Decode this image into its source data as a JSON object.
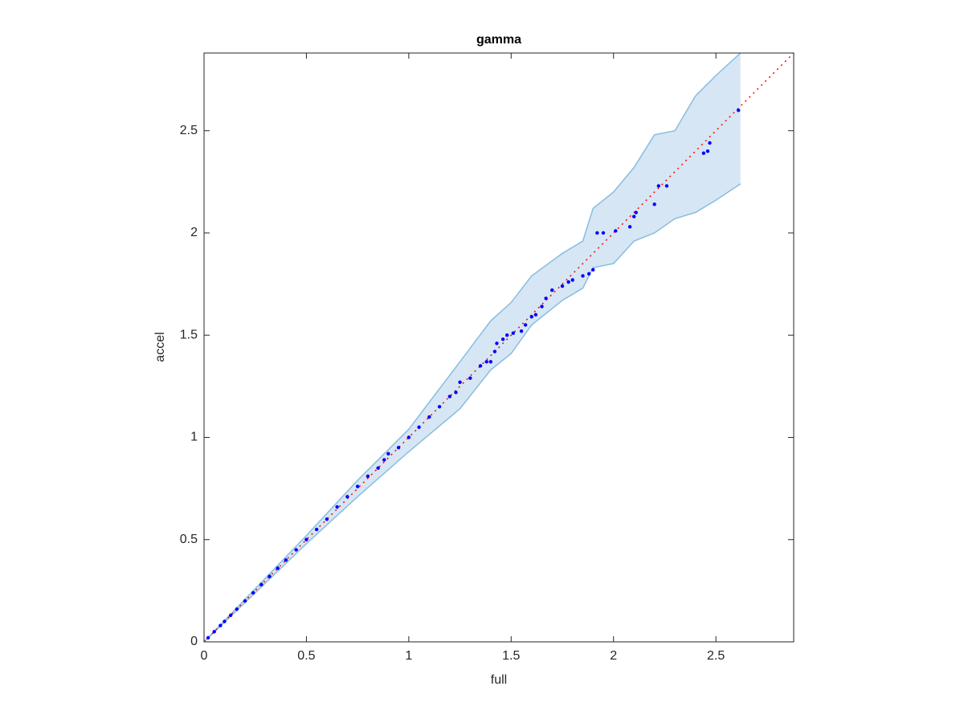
{
  "chart_data": {
    "type": "scatter",
    "title": "gamma",
    "x_label": "full",
    "y_label": "accel",
    "xlim": [
      0,
      2.88
    ],
    "ylim": [
      0,
      2.88
    ],
    "xticks": [
      0,
      0.5,
      1,
      1.5,
      2,
      2.5
    ],
    "yticks": [
      0,
      0.5,
      1,
      1.5,
      2,
      2.5
    ],
    "band": {
      "color": "#d6e6f4",
      "edge_color": "#88bde0",
      "x": [
        0,
        0.25,
        0.5,
        0.75,
        1.0,
        1.25,
        1.4,
        1.5,
        1.6,
        1.75,
        1.85,
        1.9,
        2.0,
        2.1,
        2.2,
        2.3,
        2.4,
        2.5,
        2.62
      ],
      "upper": [
        0,
        0.26,
        0.52,
        0.79,
        1.04,
        1.37,
        1.57,
        1.66,
        1.79,
        1.9,
        1.96,
        2.12,
        2.2,
        2.32,
        2.48,
        2.5,
        2.67,
        2.77,
        2.88
      ],
      "lower": [
        0,
        0.24,
        0.48,
        0.71,
        0.93,
        1.14,
        1.33,
        1.41,
        1.55,
        1.67,
        1.73,
        1.83,
        1.85,
        1.96,
        2.0,
        2.07,
        2.1,
        2.16,
        2.24
      ]
    },
    "reference_line": {
      "color": "#ff0000",
      "x": [
        0,
        2.88
      ],
      "y": [
        0,
        2.88
      ]
    },
    "points": {
      "color": "#0000ff",
      "x": [
        0.02,
        0.05,
        0.08,
        0.1,
        0.13,
        0.16,
        0.2,
        0.24,
        0.28,
        0.32,
        0.36,
        0.4,
        0.45,
        0.5,
        0.55,
        0.6,
        0.65,
        0.7,
        0.75,
        0.8,
        0.85,
        0.88,
        0.9,
        0.95,
        1.0,
        1.05,
        1.1,
        1.15,
        1.2,
        1.23,
        1.25,
        1.3,
        1.35,
        1.38,
        1.4,
        1.42,
        1.43,
        1.46,
        1.48,
        1.51,
        1.55,
        1.57,
        1.6,
        1.62,
        1.65,
        1.67,
        1.7,
        1.75,
        1.78,
        1.8,
        1.85,
        1.88,
        1.9,
        1.92,
        1.95,
        2.01,
        2.08,
        2.1,
        2.11,
        2.2,
        2.22,
        2.26,
        2.44,
        2.46,
        2.47,
        2.61
      ],
      "y": [
        0.02,
        0.05,
        0.08,
        0.1,
        0.13,
        0.16,
        0.2,
        0.24,
        0.28,
        0.32,
        0.36,
        0.4,
        0.45,
        0.5,
        0.55,
        0.6,
        0.66,
        0.71,
        0.76,
        0.81,
        0.85,
        0.89,
        0.92,
        0.95,
        1.0,
        1.05,
        1.1,
        1.15,
        1.2,
        1.22,
        1.27,
        1.29,
        1.35,
        1.37,
        1.37,
        1.42,
        1.46,
        1.48,
        1.5,
        1.51,
        1.52,
        1.55,
        1.59,
        1.6,
        1.64,
        1.68,
        1.72,
        1.74,
        1.76,
        1.77,
        1.79,
        1.8,
        1.82,
        2.0,
        2.0,
        2.01,
        2.03,
        2.08,
        2.1,
        2.14,
        2.23,
        2.23,
        2.39,
        2.4,
        2.44,
        2.6
      ]
    }
  }
}
